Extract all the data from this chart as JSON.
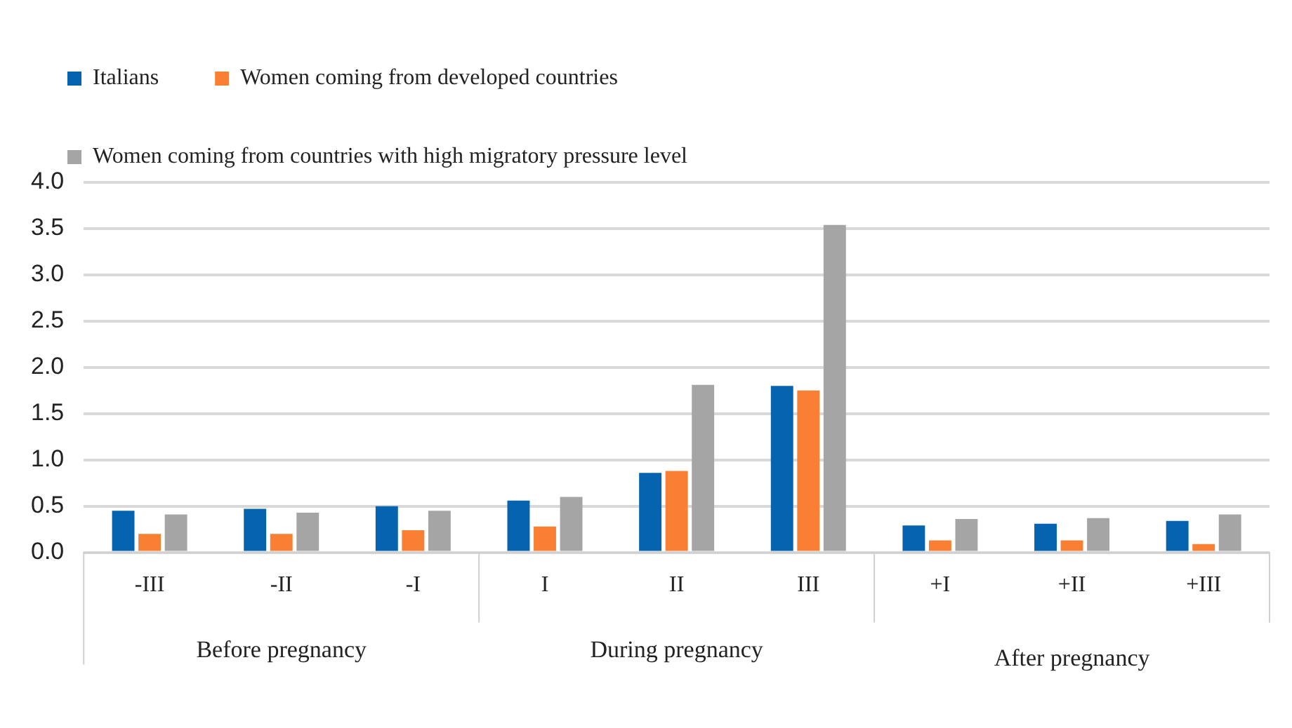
{
  "chart_data": {
    "type": "bar",
    "categories": [
      "-III",
      "-II",
      "-I",
      "I",
      "II",
      "III",
      "+I",
      "+II",
      "+III"
    ],
    "series": [
      {
        "name": "Italians",
        "color": "#0563b0",
        "values": [
          0.45,
          0.47,
          0.5,
          0.56,
          0.86,
          1.8,
          0.29,
          0.31,
          0.34
        ]
      },
      {
        "name": "Women coming from developed countries",
        "color": "#f98032",
        "values": [
          0.2,
          0.2,
          0.24,
          0.28,
          0.88,
          1.75,
          0.13,
          0.13,
          0.09
        ]
      },
      {
        "name": "Women coming from countries with high migratory pressure level",
        "color": "#a5a5a5",
        "values": [
          0.41,
          0.43,
          0.45,
          0.6,
          1.81,
          3.54,
          0.36,
          0.37,
          0.41
        ]
      }
    ],
    "ylim": [
      0,
      4
    ],
    "yticks": [
      {
        "value": 0,
        "label": "0.0"
      },
      {
        "value": 0.5,
        "label": "0.5"
      },
      {
        "value": 1,
        "label": "1.0"
      },
      {
        "value": 1.5,
        "label": "1.5"
      },
      {
        "value": 2,
        "label": "2.0"
      },
      {
        "value": 2.5,
        "label": "2.5"
      },
      {
        "value": 3,
        "label": "3.0"
      },
      {
        "value": 3.5,
        "label": "3.5"
      },
      {
        "value": 4,
        "label": "4.0"
      }
    ],
    "annotations": [
      "Before pregnancy",
      "During pregnancy",
      "After pregnancy"
    ],
    "grid": "y",
    "legend": "top"
  }
}
